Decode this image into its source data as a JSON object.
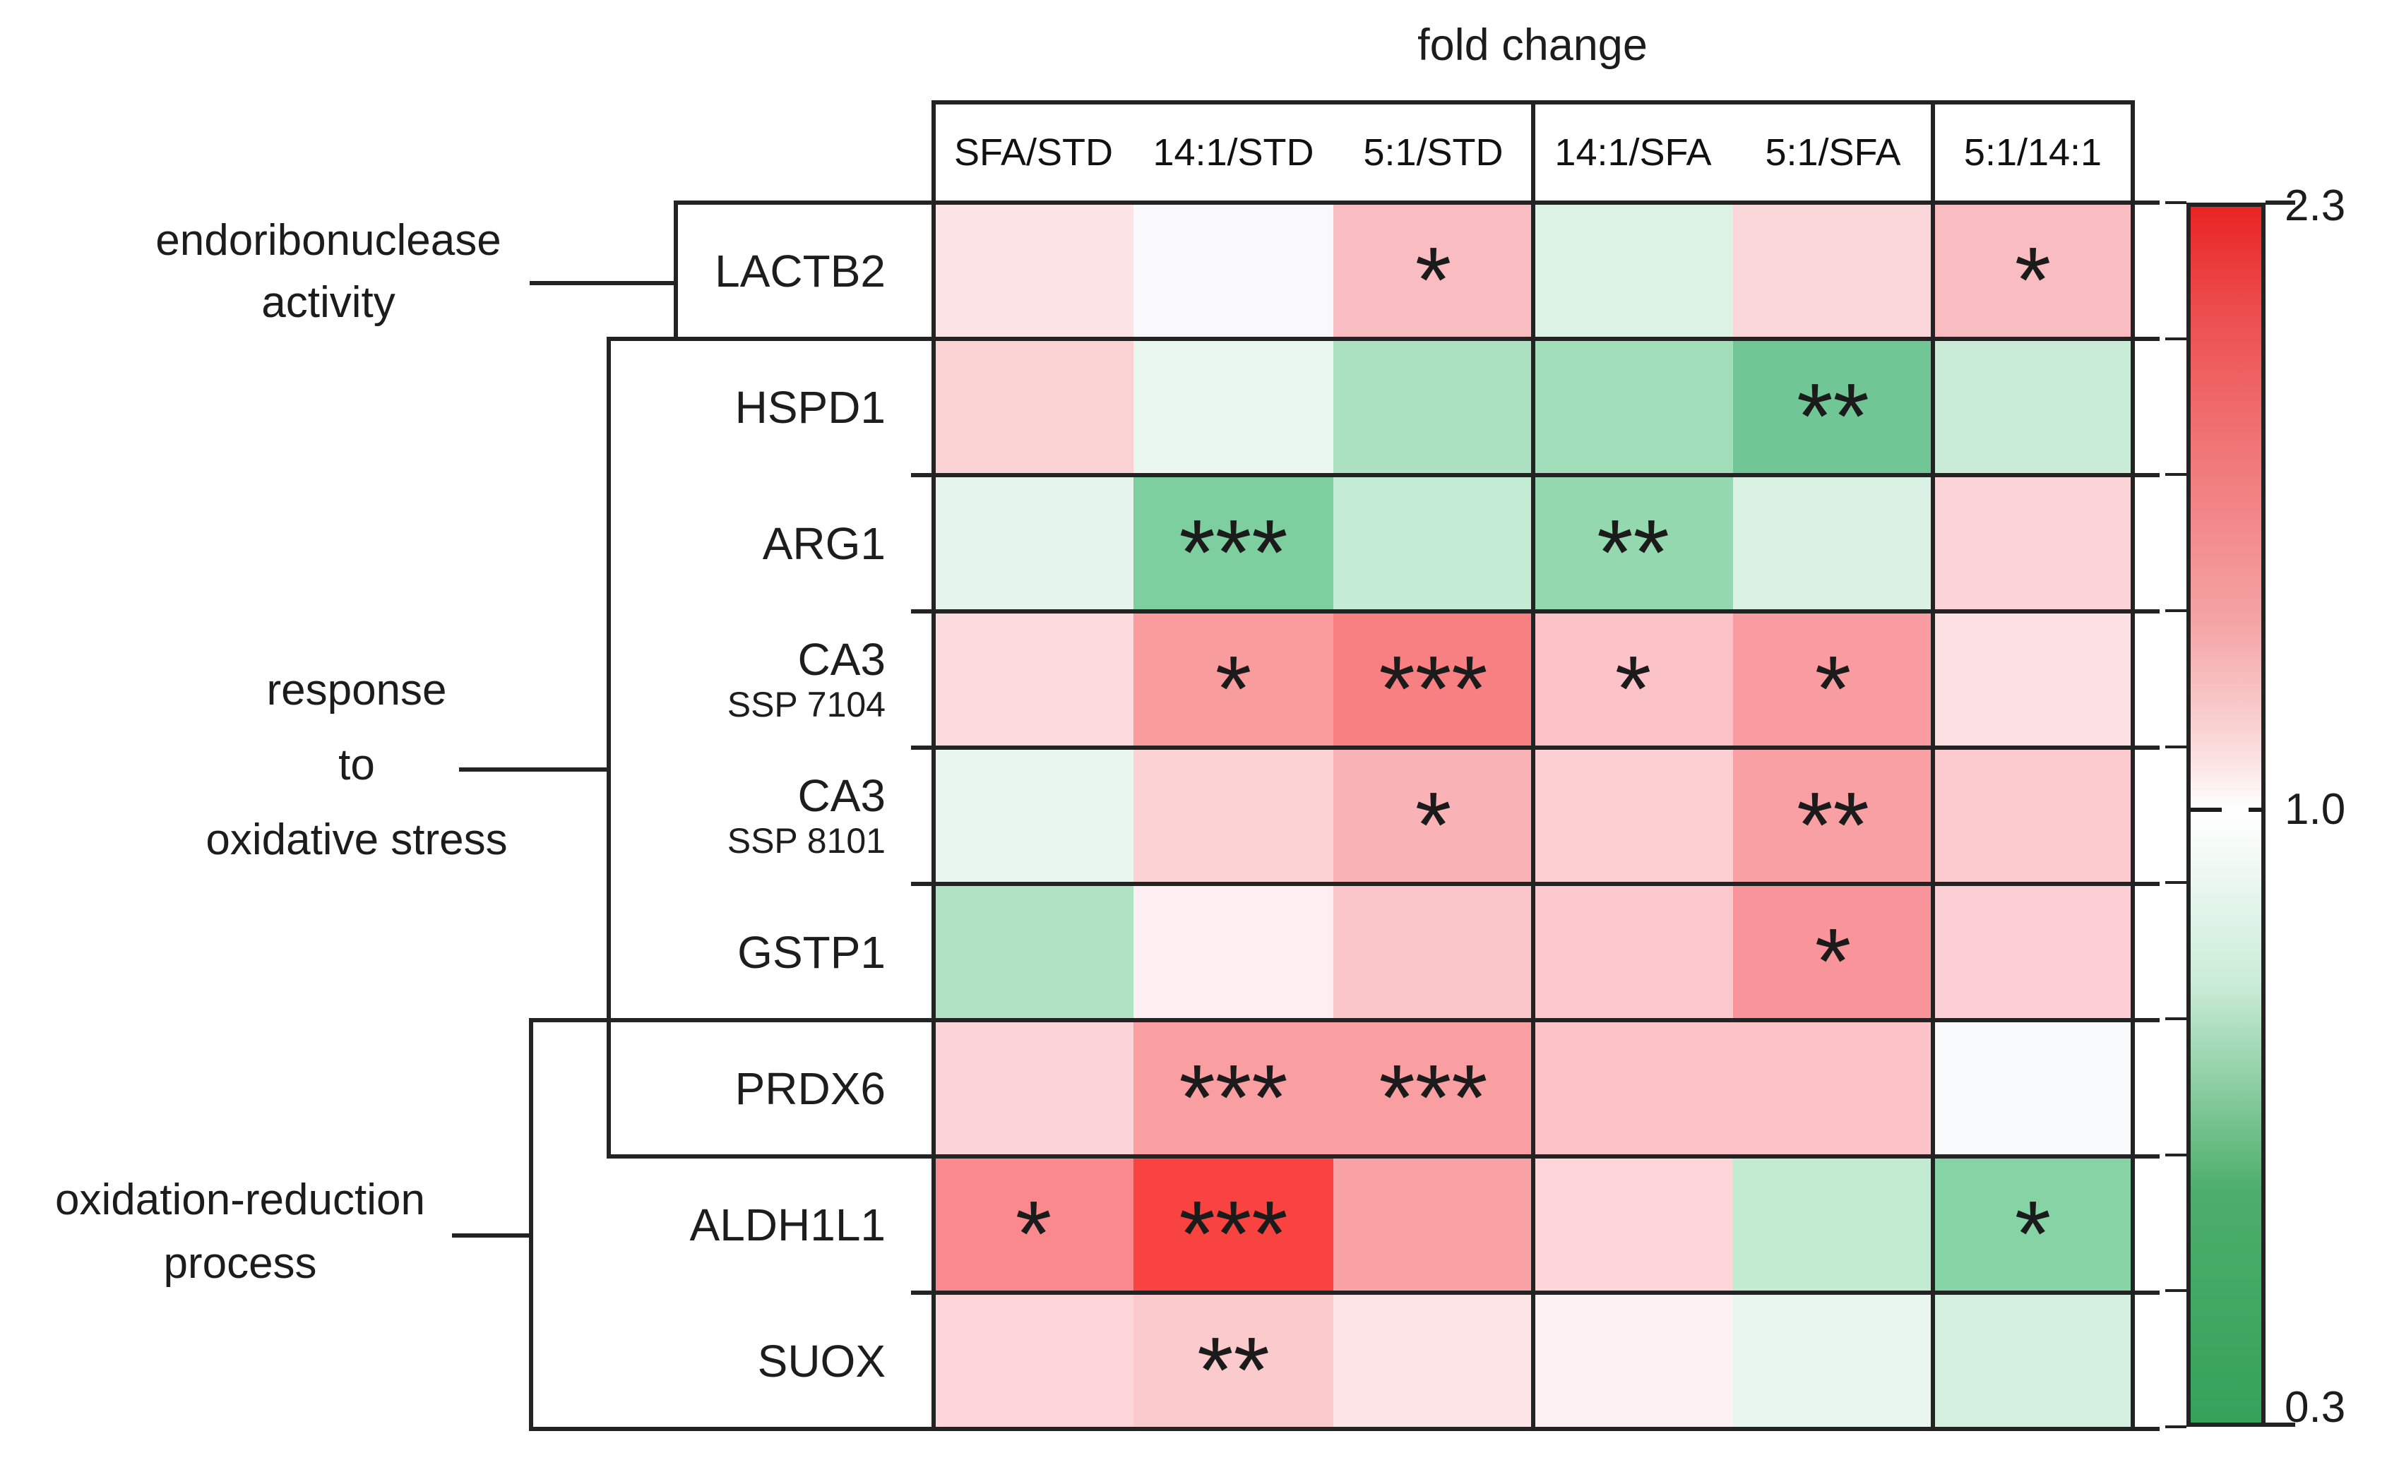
{
  "title": "fold change",
  "columns": [
    "SFA/STD",
    "14:1/STD",
    "5:1/STD",
    "14:1/SFA",
    "5:1/SFA",
    "5:1/14:1"
  ],
  "row_groups": [
    {
      "label": "endoribonuclease activity",
      "label_lines": [
        "endoribonuclease",
        "activity"
      ],
      "rows": [
        "LACTB2"
      ]
    },
    {
      "label": "response to oxidative stress",
      "label_lines": [
        "response",
        "to",
        "oxidative stress"
      ],
      "rows": [
        "HSPD1",
        "ARG1",
        "CA3 SSP 7104",
        "CA3 SSP 8101",
        "GSTP1",
        "PRDX6"
      ]
    },
    {
      "label": "oxidation-reduction process",
      "label_lines": [
        "oxidation-reduction",
        "process"
      ],
      "rows": [
        "PRDX6",
        "ALDH1L1",
        "SUOX"
      ]
    }
  ],
  "rows": [
    {
      "gene": "LACTB2",
      "subtitle": "",
      "cells": [
        {
          "color": "#fbe3e6",
          "stars": ""
        },
        {
          "color": "#f8f8fd",
          "stars": ""
        },
        {
          "color": "#f9bdc1",
          "stars": "*"
        },
        {
          "color": "#dbf2e4",
          "stars": ""
        },
        {
          "color": "#fbd6d8",
          "stars": ""
        },
        {
          "color": "#f9bdc1",
          "stars": "*"
        }
      ]
    },
    {
      "gene": "HSPD1",
      "subtitle": "",
      "cells": [
        {
          "color": "#fbd2d4",
          "stars": ""
        },
        {
          "color": "#e9f7ef",
          "stars": ""
        },
        {
          "color": "#abe1c0",
          "stars": ""
        },
        {
          "color": "#a3deba",
          "stars": ""
        },
        {
          "color": "#70c795",
          "stars": "**"
        },
        {
          "color": "#c9ecd7",
          "stars": ""
        }
      ]
    },
    {
      "gene": "ARG1",
      "subtitle": "",
      "cells": [
        {
          "color": "#e5f5ec",
          "stars": ""
        },
        {
          "color": "#7ecfa0",
          "stars": "***"
        },
        {
          "color": "#c4ebd3",
          "stars": ""
        },
        {
          "color": "#93d8af",
          "stars": "**"
        },
        {
          "color": "#daf2e3",
          "stars": ""
        },
        {
          "color": "#fbd4d8",
          "stars": ""
        }
      ]
    },
    {
      "gene": "CA3",
      "subtitle": "SSP 7104",
      "cells": [
        {
          "color": "#fcdade",
          "stars": ""
        },
        {
          "color": "#f99c9e",
          "stars": "*"
        },
        {
          "color": "#f88082",
          "stars": "***"
        },
        {
          "color": "#fbc3c7",
          "stars": "*"
        },
        {
          "color": "#f99ca2",
          "stars": "*"
        },
        {
          "color": "#fce1e4",
          "stars": ""
        }
      ]
    },
    {
      "gene": "CA3",
      "subtitle": "SSP 8101",
      "cells": [
        {
          "color": "#e9f6ee",
          "stars": ""
        },
        {
          "color": "#fcd2d5",
          "stars": ""
        },
        {
          "color": "#f9b2b5",
          "stars": "*"
        },
        {
          "color": "#fccfd3",
          "stars": ""
        },
        {
          "color": "#f9a0a5",
          "stars": "**"
        },
        {
          "color": "#fccbd0",
          "stars": ""
        }
      ]
    },
    {
      "gene": "GSTP1",
      "subtitle": "",
      "cells": [
        {
          "color": "#afe3c3",
          "stars": ""
        },
        {
          "color": "#fdeff1",
          "stars": ""
        },
        {
          "color": "#fbc6ca",
          "stars": ""
        },
        {
          "color": "#fbc9cd",
          "stars": ""
        },
        {
          "color": "#f9949a",
          "stars": "*"
        },
        {
          "color": "#fbcfd3",
          "stars": ""
        }
      ]
    },
    {
      "gene": "PRDX6",
      "subtitle": "",
      "cells": [
        {
          "color": "#fcd4d7",
          "stars": ""
        },
        {
          "color": "#f99ea1",
          "stars": "***"
        },
        {
          "color": "#f99ea1",
          "stars": "***"
        },
        {
          "color": "#fbc3c7",
          "stars": ""
        },
        {
          "color": "#fbc3c7",
          "stars": ""
        },
        {
          "color": "#f8fafc",
          "stars": ""
        }
      ]
    },
    {
      "gene": "ALDH1L1",
      "subtitle": "",
      "cells": [
        {
          "color": "#f9898c",
          "stars": "*"
        },
        {
          "color": "#f94340",
          "stars": "***"
        },
        {
          "color": "#f9a2a5",
          "stars": ""
        },
        {
          "color": "#fcd6d9",
          "stars": ""
        },
        {
          "color": "#c2ebd1",
          "stars": ""
        },
        {
          "color": "#86d3a6",
          "stars": "*"
        }
      ]
    },
    {
      "gene": "SUOX",
      "subtitle": "",
      "cells": [
        {
          "color": "#fcd6d9",
          "stars": ""
        },
        {
          "color": "#fbcacd",
          "stars": "**"
        },
        {
          "color": "#fde5e7",
          "stars": ""
        },
        {
          "color": "#fdf1f3",
          "stars": ""
        },
        {
          "color": "#e8f6ee",
          "stars": ""
        },
        {
          "color": "#d5f0e0",
          "stars": ""
        }
      ]
    }
  ],
  "colorbar": {
    "max_label": "2.3",
    "mid_label": "1.0",
    "min_label": "0.3",
    "max_color": "#e92424",
    "mid_color": "#ffffff",
    "min_color": "#35a25a"
  },
  "chart_data": {
    "type": "heatmap",
    "title": "fold change",
    "columns": [
      "SFA/STD",
      "14:1/STD",
      "5:1/STD",
      "14:1/SFA",
      "5:1/SFA",
      "5:1/14:1"
    ],
    "column_groups": [
      [
        "SFA/STD",
        "14:1/STD",
        "5:1/STD"
      ],
      [
        "14:1/SFA",
        "5:1/SFA"
      ],
      [
        "5:1/14:1"
      ]
    ],
    "rows": [
      "LACTB2",
      "HSPD1",
      "ARG1",
      "CA3 SSP 7104",
      "CA3 SSP 8101",
      "GSTP1",
      "PRDX6",
      "ALDH1L1",
      "SUOX"
    ],
    "row_groups": [
      {
        "label": "endoribonuclease activity",
        "rows": [
          "LACTB2"
        ]
      },
      {
        "label": "response to oxidative stress",
        "rows": [
          "HSPD1",
          "ARG1",
          "CA3 SSP 7104",
          "CA3 SSP 8101",
          "GSTP1",
          "PRDX6"
        ]
      },
      {
        "label": "oxidation-reduction process",
        "rows": [
          "PRDX6",
          "ALDH1L1",
          "SUOX"
        ]
      }
    ],
    "values_estimated_from_color": true,
    "values": [
      [
        1.12,
        1.0,
        1.32,
        0.9,
        1.18,
        1.32
      ],
      [
        1.2,
        0.95,
        0.7,
        0.68,
        0.5,
        0.83
      ],
      [
        0.93,
        0.55,
        0.82,
        0.62,
        0.9,
        1.18
      ],
      [
        1.15,
        1.5,
        1.65,
        1.3,
        1.48,
        1.12
      ],
      [
        0.93,
        1.22,
        1.38,
        1.22,
        1.45,
        1.24
      ],
      [
        0.72,
        1.05,
        1.28,
        1.28,
        1.52,
        1.26
      ],
      [
        1.18,
        1.48,
        1.48,
        1.3,
        1.3,
        1.0
      ],
      [
        1.6,
        2.2,
        1.45,
        1.18,
        0.8,
        0.57
      ],
      [
        1.18,
        1.24,
        1.1,
        1.04,
        0.93,
        0.87
      ]
    ],
    "significance": [
      [
        "",
        "",
        "*",
        "",
        "",
        "*"
      ],
      [
        "",
        "",
        "",
        "",
        "**",
        ""
      ],
      [
        "",
        "***",
        "",
        "**",
        "",
        ""
      ],
      [
        "",
        "*",
        "***",
        "*",
        "*",
        ""
      ],
      [
        "",
        "",
        "*",
        "",
        "**",
        ""
      ],
      [
        "",
        "",
        "",
        "",
        "*",
        ""
      ],
      [
        "",
        "***",
        "***",
        "",
        "",
        ""
      ],
      [
        "*",
        "***",
        "",
        "",
        "",
        "*"
      ],
      [
        "",
        "**",
        "",
        "",
        "",
        ""
      ]
    ],
    "colorbar": {
      "min": 0.3,
      "mid": 1.0,
      "max": 2.3,
      "min_color": "#35a25a",
      "mid_color": "#ffffff",
      "max_color": "#e92424"
    },
    "legend_position": "right",
    "grid": true
  }
}
